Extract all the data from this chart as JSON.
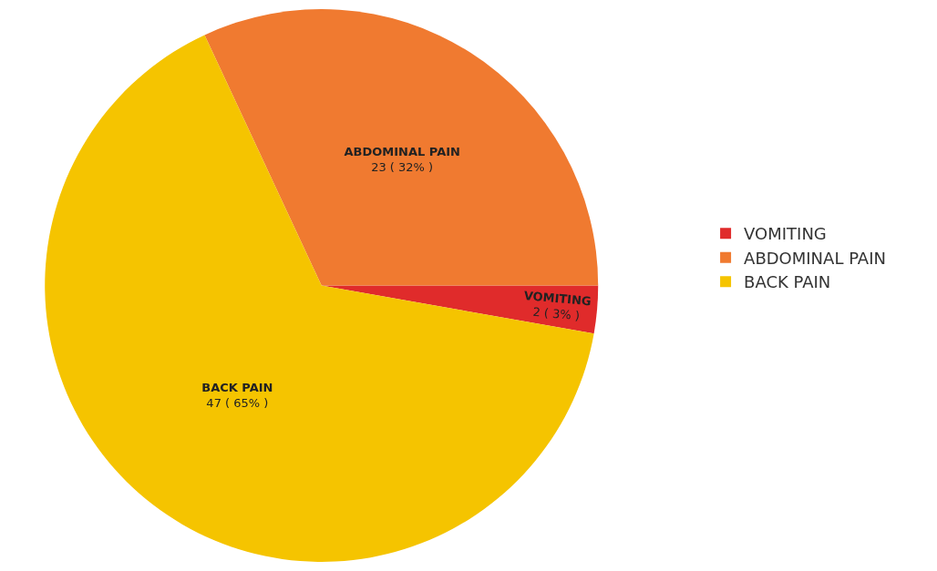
{
  "chart_data": {
    "type": "pie",
    "categories": [
      "VOMITING",
      "ABDOMINAL PAIN",
      "BACK PAIN"
    ],
    "values": [
      2,
      23,
      47
    ],
    "colors": [
      "#e02b2b",
      "#f07a30",
      "#f5c400"
    ],
    "value_labels": [
      "2 ( 3% )",
      "23 ( 32% )",
      "47 ( 65% )"
    ],
    "legend": "right"
  }
}
